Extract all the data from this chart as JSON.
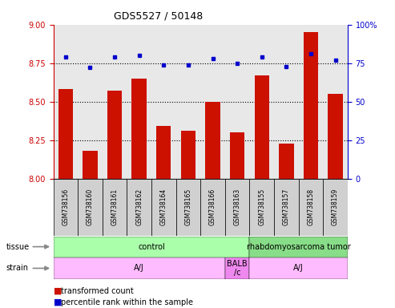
{
  "title": "GDS5527 / 50148",
  "samples": [
    "GSM738156",
    "GSM738160",
    "GSM738161",
    "GSM738162",
    "GSM738164",
    "GSM738165",
    "GSM738166",
    "GSM738163",
    "GSM738155",
    "GSM738157",
    "GSM738158",
    "GSM738159"
  ],
  "bar_values": [
    8.58,
    8.18,
    8.57,
    8.65,
    8.34,
    8.31,
    8.5,
    8.3,
    8.67,
    8.23,
    8.95,
    8.55
  ],
  "dot_values": [
    79,
    72,
    79,
    80,
    74,
    74,
    78,
    75,
    79,
    73,
    81,
    77
  ],
  "ylim_left": [
    8.0,
    9.0
  ],
  "ylim_right": [
    0,
    100
  ],
  "yticks_left": [
    8.0,
    8.25,
    8.5,
    8.75,
    9.0
  ],
  "yticks_right": [
    0,
    25,
    50,
    75,
    100
  ],
  "bar_color": "#cc1100",
  "dot_color": "#0000cc",
  "tissue_groups": [
    {
      "label": "control",
      "start": 0,
      "end": 8,
      "color": "#aaffaa"
    },
    {
      "label": "rhabdomyosarcoma tumor",
      "start": 8,
      "end": 12,
      "color": "#88dd88"
    }
  ],
  "strain_groups": [
    {
      "label": "A/J",
      "start": 0,
      "end": 7,
      "color": "#ffbbff"
    },
    {
      "label": "BALB\n/c",
      "start": 7,
      "end": 8,
      "color": "#ee88ee"
    },
    {
      "label": "A/J",
      "start": 8,
      "end": 12,
      "color": "#ffbbff"
    }
  ],
  "legend_bar_label": "transformed count",
  "legend_dot_label": "percentile rank within the sample",
  "axis_label_color_left": "#cc0000",
  "axis_label_color_right": "#0000cc",
  "bg_color": "#ffffff",
  "plot_bg_color": "#e8e8e8",
  "dotted_lines": [
    8.25,
    8.5,
    8.75
  ]
}
